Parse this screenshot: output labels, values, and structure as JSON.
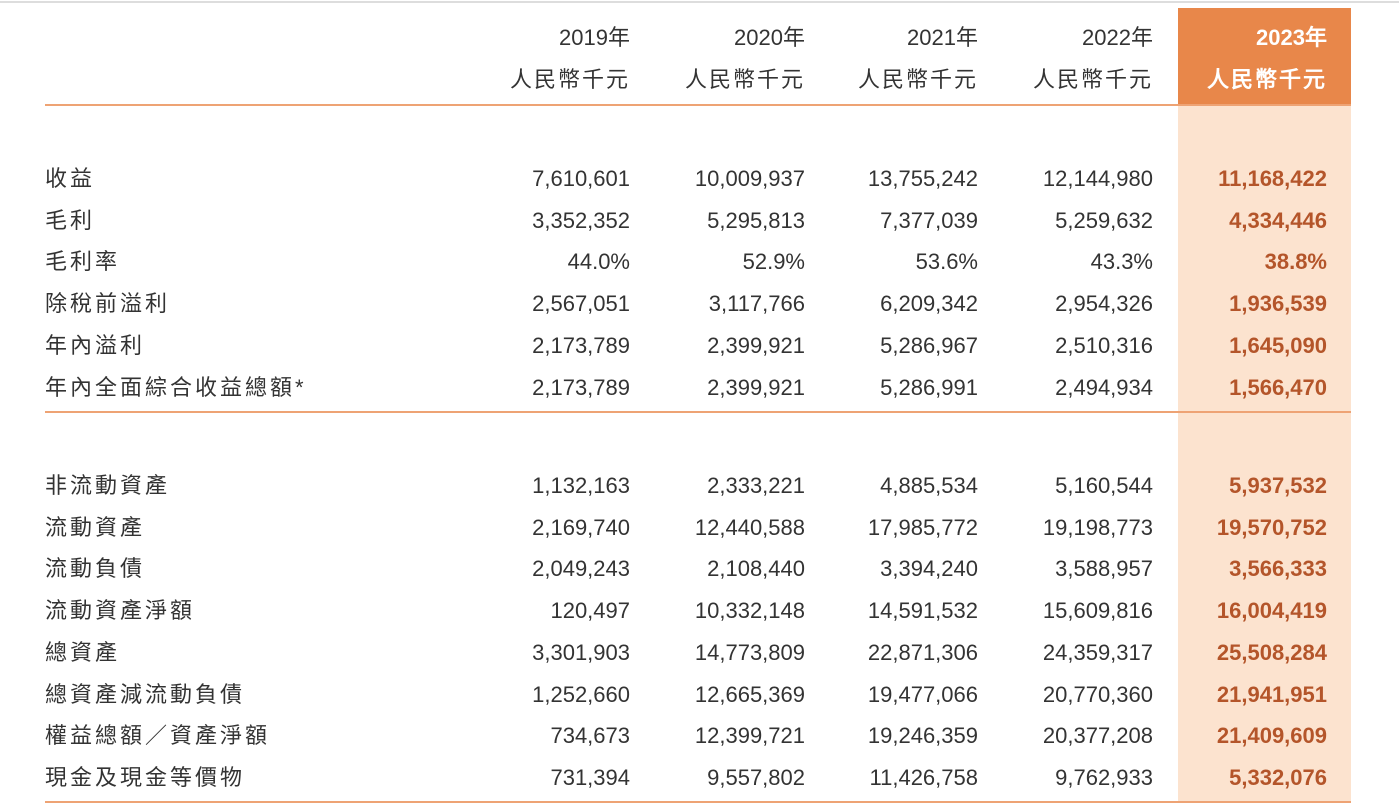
{
  "header": {
    "columns": [
      {
        "year": "2019年",
        "unit": "人民幣千元"
      },
      {
        "year": "2020年",
        "unit": "人民幣千元"
      },
      {
        "year": "2021年",
        "unit": "人民幣千元"
      },
      {
        "year": "2022年",
        "unit": "人民幣千元"
      },
      {
        "year": "2023年",
        "unit": "人民幣千元"
      }
    ]
  },
  "table": {
    "sections": [
      {
        "rows": [
          {
            "label": "收益",
            "values": [
              "7,610,601",
              "10,009,937",
              "13,755,242",
              "12,144,980",
              "11,168,422"
            ]
          },
          {
            "label": "毛利",
            "values": [
              "3,352,352",
              "5,295,813",
              "7,377,039",
              "5,259,632",
              "4,334,446"
            ]
          },
          {
            "label": "毛利率",
            "values": [
              "44.0%",
              "52.9%",
              "53.6%",
              "43.3%",
              "38.8%"
            ]
          },
          {
            "label": "除稅前溢利",
            "values": [
              "2,567,051",
              "3,117,766",
              "6,209,342",
              "2,954,326",
              "1,936,539"
            ]
          },
          {
            "label": "年內溢利",
            "values": [
              "2,173,789",
              "2,399,921",
              "5,286,967",
              "2,510,316",
              "1,645,090"
            ]
          },
          {
            "label": "年內全面綜合收益總額*",
            "values": [
              "2,173,789",
              "2,399,921",
              "5,286,991",
              "2,494,934",
              "1,566,470"
            ]
          }
        ]
      },
      {
        "rows": [
          {
            "label": "非流動資產",
            "values": [
              "1,132,163",
              "2,333,221",
              "4,885,534",
              "5,160,544",
              "5,937,532"
            ]
          },
          {
            "label": "流動資產",
            "values": [
              "2,169,740",
              "12,440,588",
              "17,985,772",
              "19,198,773",
              "19,570,752"
            ]
          },
          {
            "label": "流動負債",
            "values": [
              "2,049,243",
              "2,108,440",
              "3,394,240",
              "3,588,957",
              "3,566,333"
            ]
          },
          {
            "label": "流動資產淨額",
            "values": [
              "120,497",
              "10,332,148",
              "14,591,532",
              "15,609,816",
              "16,004,419"
            ]
          },
          {
            "label": "總資產",
            "values": [
              "3,301,903",
              "14,773,809",
              "22,871,306",
              "24,359,317",
              "25,508,284"
            ]
          },
          {
            "label": "總資產減流動負債",
            "values": [
              "1,252,660",
              "12,665,369",
              "19,477,066",
              "20,770,360",
              "21,941,951"
            ]
          },
          {
            "label": "權益總額／資產淨額",
            "values": [
              "734,673",
              "12,399,721",
              "19,246,359",
              "20,377,208",
              "21,409,609"
            ]
          },
          {
            "label": "現金及現金等價物",
            "values": [
              "731,394",
              "9,557,802",
              "11,426,758",
              "9,762,933",
              "5,332,076"
            ]
          }
        ]
      }
    ]
  }
}
